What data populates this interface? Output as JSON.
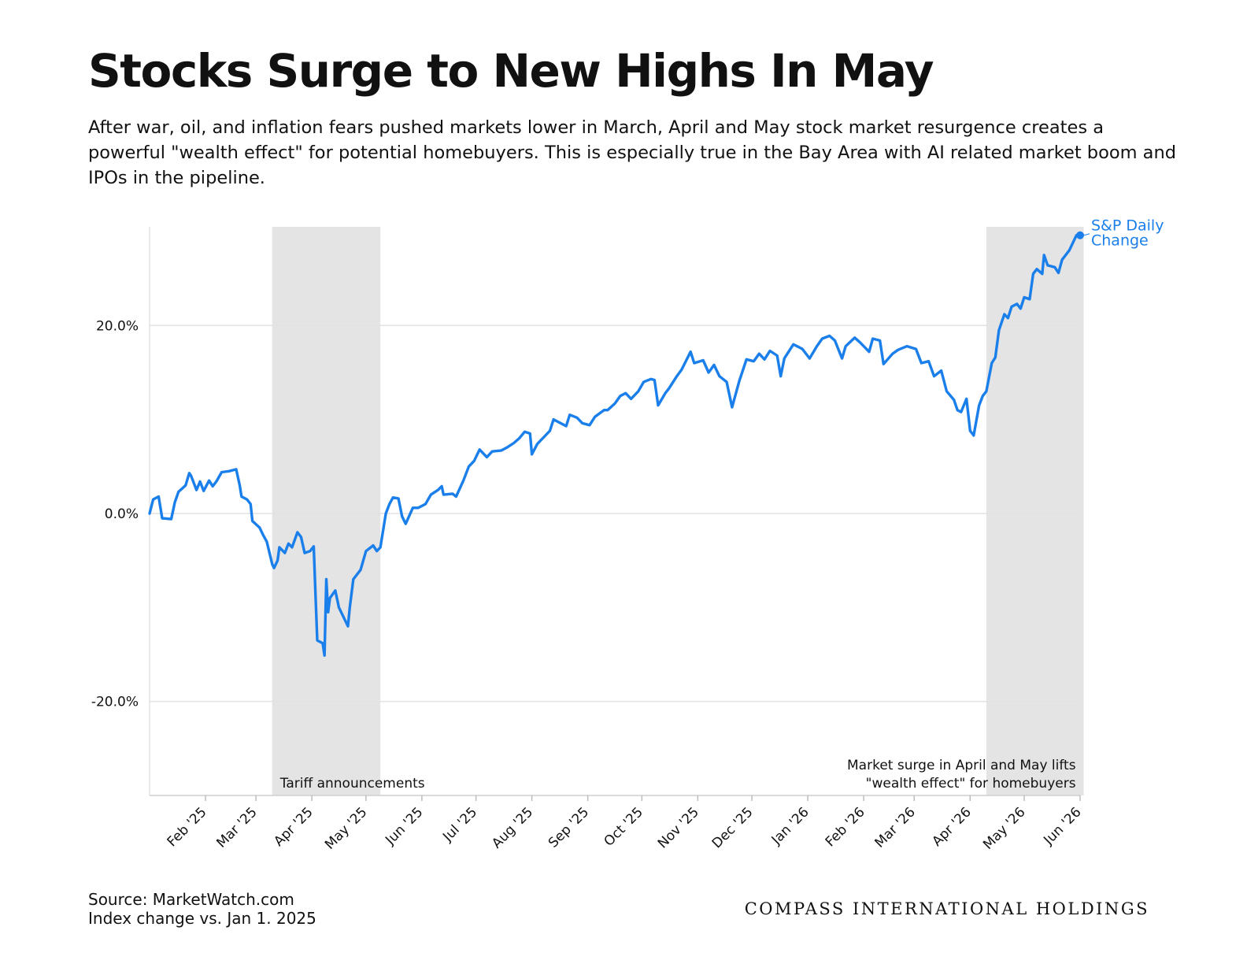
{
  "header": {
    "title": "Stocks Surge to New Highs In May",
    "subtitle": "After war, oil, and inflation fears pushed markets lower in March, April and May stock market resurgence creates a powerful \"wealth effect\" for potential homebuyers. This is especially true in the Bay Area with AI related market boom and IPOs in the pipeline."
  },
  "footer": {
    "source_line1": "Source: MarketWatch.com",
    "source_line2": "Index change vs. Jan 1. 2025",
    "brand": "COMPASS INTERNATIONAL HOLDINGS"
  },
  "colors": {
    "line": "#1a7fea",
    "shade": "#e4e4e4",
    "grid": "#e2e2e2",
    "text": "#111111"
  },
  "chart_data": {
    "type": "line",
    "title": "Stocks Surge to New Highs In May",
    "xlabel": "",
    "ylabel": "",
    "x_range": [
      "2025-01-01",
      "2026-06-01"
    ],
    "ylim": [
      -30,
      30.5
    ],
    "y_ticks": [
      {
        "value": 20,
        "label": "20.0%"
      },
      {
        "value": 0,
        "label": "0.0%"
      },
      {
        "value": -20,
        "label": "-20.0%"
      }
    ],
    "x_ticks": [
      {
        "date": "2025-02-01",
        "label": "Feb '25"
      },
      {
        "date": "2025-03-01",
        "label": "Mar '25"
      },
      {
        "date": "2025-04-01",
        "label": "Apr '25"
      },
      {
        "date": "2025-05-01",
        "label": "May '25"
      },
      {
        "date": "2025-06-01",
        "label": "Jun '25"
      },
      {
        "date": "2025-07-01",
        "label": "Jul '25"
      },
      {
        "date": "2025-08-01",
        "label": "Aug '25"
      },
      {
        "date": "2025-09-01",
        "label": "Sep '25"
      },
      {
        "date": "2025-10-01",
        "label": "Oct '25"
      },
      {
        "date": "2025-11-01",
        "label": "Nov '25"
      },
      {
        "date": "2025-12-01",
        "label": "Dec '25"
      },
      {
        "date": "2026-01-01",
        "label": "Jan '26"
      },
      {
        "date": "2026-02-01",
        "label": "Feb '26"
      },
      {
        "date": "2026-03-01",
        "label": "Mar '26"
      },
      {
        "date": "2026-04-01",
        "label": "Apr '26"
      },
      {
        "date": "2026-05-01",
        "label": "May '26"
      },
      {
        "date": "2026-06-01",
        "label": "Jun '26"
      }
    ],
    "grid": true,
    "legend": "none",
    "shaded_regions": [
      {
        "start": "2025-03-10",
        "end": "2025-05-09",
        "label": "Tariff announcements"
      },
      {
        "start": "2026-04-10",
        "end": "2026-06-03",
        "label": "Market surge in April and May lifts\n\"wealth effect\" for homebuyers"
      }
    ],
    "series": [
      {
        "name": "S&P Daily Change",
        "points": [
          [
            "2025-01-01",
            0.0
          ],
          [
            "2025-01-03",
            1.5
          ],
          [
            "2025-01-06",
            1.8
          ],
          [
            "2025-01-08",
            -0.5
          ],
          [
            "2025-01-13",
            -0.6
          ],
          [
            "2025-01-15",
            1.2
          ],
          [
            "2025-01-17",
            2.3
          ],
          [
            "2025-01-21",
            3.0
          ],
          [
            "2025-01-23",
            4.3
          ],
          [
            "2025-01-24",
            4.0
          ],
          [
            "2025-01-27",
            2.5
          ],
          [
            "2025-01-29",
            3.4
          ],
          [
            "2025-01-31",
            2.4
          ],
          [
            "2025-02-03",
            3.5
          ],
          [
            "2025-02-05",
            2.9
          ],
          [
            "2025-02-07",
            3.4
          ],
          [
            "2025-02-10",
            4.4
          ],
          [
            "2025-02-14",
            4.5
          ],
          [
            "2025-02-18",
            4.7
          ],
          [
            "2025-02-20",
            3.0
          ],
          [
            "2025-02-21",
            1.8
          ],
          [
            "2025-02-24",
            1.5
          ],
          [
            "2025-02-26",
            1.0
          ],
          [
            "2025-02-27",
            -0.8
          ],
          [
            "2025-03-03",
            -1.5
          ],
          [
            "2025-03-05",
            -2.3
          ],
          [
            "2025-03-07",
            -3.0
          ],
          [
            "2025-03-10",
            -5.4
          ],
          [
            "2025-03-11",
            -5.8
          ],
          [
            "2025-03-13",
            -5.0
          ],
          [
            "2025-03-14",
            -3.6
          ],
          [
            "2025-03-17",
            -4.2
          ],
          [
            "2025-03-19",
            -3.2
          ],
          [
            "2025-03-21",
            -3.6
          ],
          [
            "2025-03-24",
            -2.0
          ],
          [
            "2025-03-26",
            -2.5
          ],
          [
            "2025-03-28",
            -4.2
          ],
          [
            "2025-03-31",
            -4.0
          ],
          [
            "2025-04-02",
            -3.5
          ],
          [
            "2025-04-03",
            -8.5
          ],
          [
            "2025-04-04",
            -13.5
          ],
          [
            "2025-04-07",
            -13.8
          ],
          [
            "2025-04-08",
            -15.1
          ],
          [
            "2025-04-09",
            -7.0
          ],
          [
            "2025-04-10",
            -10.5
          ],
          [
            "2025-04-11",
            -9.0
          ],
          [
            "2025-04-14",
            -8.2
          ],
          [
            "2025-04-16",
            -10.0
          ],
          [
            "2025-04-21",
            -12.0
          ],
          [
            "2025-04-22",
            -10.0
          ],
          [
            "2025-04-24",
            -7.0
          ],
          [
            "2025-04-28",
            -6.0
          ],
          [
            "2025-05-01",
            -4.0
          ],
          [
            "2025-05-05",
            -3.4
          ],
          [
            "2025-05-07",
            -4.0
          ],
          [
            "2025-05-09",
            -3.6
          ],
          [
            "2025-05-12",
            0.0
          ],
          [
            "2025-05-14",
            1.0
          ],
          [
            "2025-05-16",
            1.7
          ],
          [
            "2025-05-19",
            1.6
          ],
          [
            "2025-05-21",
            -0.3
          ],
          [
            "2025-05-23",
            -1.1
          ],
          [
            "2025-05-27",
            0.6
          ],
          [
            "2025-05-30",
            0.6
          ],
          [
            "2025-06-03",
            1.0
          ],
          [
            "2025-06-06",
            2.0
          ],
          [
            "2025-06-10",
            2.5
          ],
          [
            "2025-06-12",
            2.9
          ],
          [
            "2025-06-13",
            2.0
          ],
          [
            "2025-06-18",
            2.1
          ],
          [
            "2025-06-20",
            1.8
          ],
          [
            "2025-06-24",
            3.5
          ],
          [
            "2025-06-27",
            5.0
          ],
          [
            "2025-06-30",
            5.6
          ],
          [
            "2025-07-03",
            6.8
          ],
          [
            "2025-07-07",
            6.0
          ],
          [
            "2025-07-10",
            6.6
          ],
          [
            "2025-07-15",
            6.7
          ],
          [
            "2025-07-18",
            7.0
          ],
          [
            "2025-07-22",
            7.5
          ],
          [
            "2025-07-25",
            8.0
          ],
          [
            "2025-07-28",
            8.7
          ],
          [
            "2025-07-31",
            8.5
          ],
          [
            "2025-08-01",
            6.3
          ],
          [
            "2025-08-04",
            7.4
          ],
          [
            "2025-08-07",
            8.0
          ],
          [
            "2025-08-11",
            8.8
          ],
          [
            "2025-08-13",
            10.0
          ],
          [
            "2025-08-15",
            9.8
          ],
          [
            "2025-08-20",
            9.3
          ],
          [
            "2025-08-22",
            10.5
          ],
          [
            "2025-08-26",
            10.2
          ],
          [
            "2025-08-29",
            9.6
          ],
          [
            "2025-09-02",
            9.4
          ],
          [
            "2025-09-05",
            10.3
          ],
          [
            "2025-09-10",
            11.0
          ],
          [
            "2025-09-12",
            11.0
          ],
          [
            "2025-09-16",
            11.7
          ],
          [
            "2025-09-19",
            12.5
          ],
          [
            "2025-09-22",
            12.8
          ],
          [
            "2025-09-25",
            12.2
          ],
          [
            "2025-09-29",
            13.0
          ],
          [
            "2025-10-02",
            14.0
          ],
          [
            "2025-10-06",
            14.3
          ],
          [
            "2025-10-08",
            14.2
          ],
          [
            "2025-10-10",
            11.5
          ],
          [
            "2025-10-14",
            12.8
          ],
          [
            "2025-10-16",
            13.3
          ],
          [
            "2025-10-20",
            14.5
          ],
          [
            "2025-10-23",
            15.3
          ],
          [
            "2025-10-28",
            17.2
          ],
          [
            "2025-10-30",
            16.0
          ],
          [
            "2025-11-04",
            16.3
          ],
          [
            "2025-11-07",
            15.0
          ],
          [
            "2025-11-10",
            15.8
          ],
          [
            "2025-11-13",
            14.6
          ],
          [
            "2025-11-17",
            14.0
          ],
          [
            "2025-11-20",
            11.3
          ],
          [
            "2025-11-24",
            14.1
          ],
          [
            "2025-11-28",
            16.4
          ],
          [
            "2025-12-02",
            16.2
          ],
          [
            "2025-12-05",
            17.0
          ],
          [
            "2025-12-08",
            16.4
          ],
          [
            "2025-12-11",
            17.3
          ],
          [
            "2025-12-15",
            16.8
          ],
          [
            "2025-12-17",
            14.6
          ],
          [
            "2025-12-19",
            16.5
          ],
          [
            "2025-12-24",
            18.0
          ],
          [
            "2025-12-29",
            17.5
          ],
          [
            "2026-01-02",
            16.5
          ],
          [
            "2026-01-06",
            17.8
          ],
          [
            "2026-01-09",
            18.6
          ],
          [
            "2026-01-13",
            18.9
          ],
          [
            "2026-01-16",
            18.4
          ],
          [
            "2026-01-20",
            16.5
          ],
          [
            "2026-01-22",
            17.8
          ],
          [
            "2026-01-27",
            18.7
          ],
          [
            "2026-01-30",
            18.2
          ],
          [
            "2026-02-04",
            17.2
          ],
          [
            "2026-02-06",
            18.6
          ],
          [
            "2026-02-10",
            18.4
          ],
          [
            "2026-02-12",
            15.9
          ],
          [
            "2026-02-17",
            17.0
          ],
          [
            "2026-02-20",
            17.4
          ],
          [
            "2026-02-25",
            17.8
          ],
          [
            "2026-03-02",
            17.5
          ],
          [
            "2026-03-05",
            16.0
          ],
          [
            "2026-03-09",
            16.2
          ],
          [
            "2026-03-12",
            14.6
          ],
          [
            "2026-03-16",
            15.2
          ],
          [
            "2026-03-19",
            13.0
          ],
          [
            "2026-03-23",
            12.1
          ],
          [
            "2026-03-25",
            11.0
          ],
          [
            "2026-03-27",
            10.8
          ],
          [
            "2026-03-30",
            12.2
          ],
          [
            "2026-04-01",
            8.8
          ],
          [
            "2026-04-03",
            8.3
          ],
          [
            "2026-04-06",
            11.5
          ],
          [
            "2026-04-08",
            12.5
          ],
          [
            "2026-04-10",
            13.0
          ],
          [
            "2026-04-13",
            16.0
          ],
          [
            "2026-04-15",
            16.6
          ],
          [
            "2026-04-17",
            19.5
          ],
          [
            "2026-04-20",
            21.2
          ],
          [
            "2026-04-22",
            20.8
          ],
          [
            "2026-04-24",
            22.0
          ],
          [
            "2026-04-27",
            22.3
          ],
          [
            "2026-04-29",
            21.8
          ],
          [
            "2026-05-01",
            23.0
          ],
          [
            "2026-05-04",
            22.8
          ],
          [
            "2026-05-06",
            25.5
          ],
          [
            "2026-05-08",
            26.0
          ],
          [
            "2026-05-11",
            25.5
          ],
          [
            "2026-05-12",
            27.5
          ],
          [
            "2026-05-14",
            26.4
          ],
          [
            "2026-05-18",
            26.2
          ],
          [
            "2026-05-20",
            25.6
          ],
          [
            "2026-05-22",
            27.0
          ],
          [
            "2026-05-26",
            28.0
          ],
          [
            "2026-05-28",
            28.8
          ],
          [
            "2026-05-30",
            29.6
          ],
          [
            "2026-06-01",
            29.6
          ]
        ]
      }
    ]
  }
}
